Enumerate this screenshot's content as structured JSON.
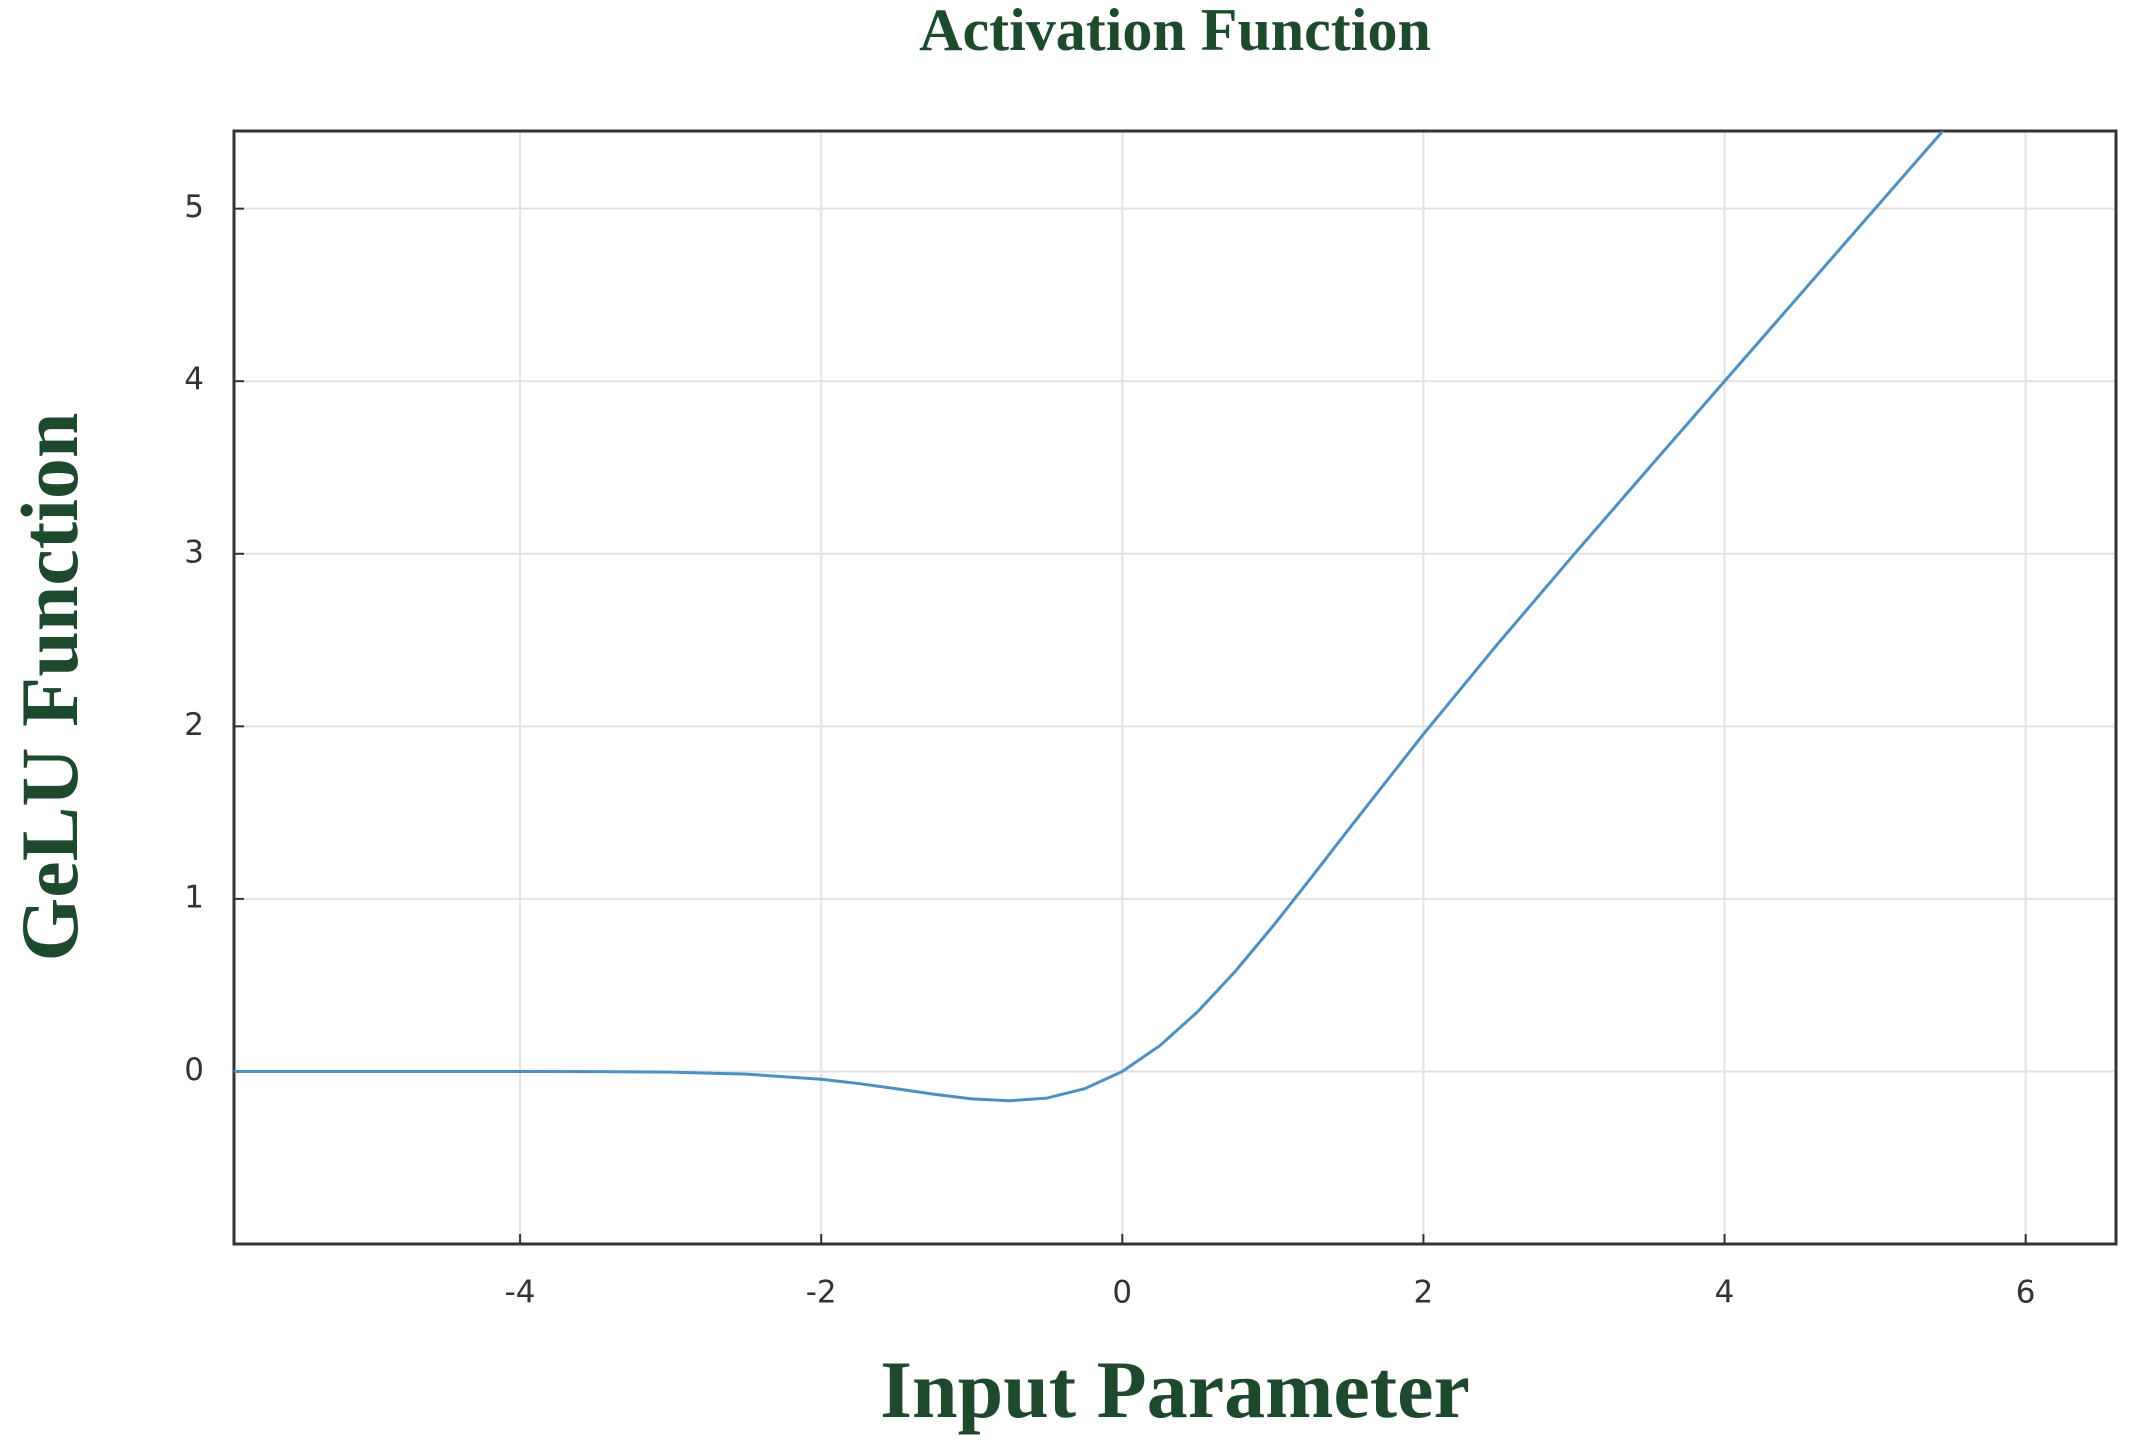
{
  "chart_data": {
    "type": "line",
    "title": "Activation Function",
    "x_label": "Input Parameter",
    "y_label": "GeLU Function",
    "x": [
      -5.9,
      -5,
      -4,
      -3.5,
      -3,
      -2.5,
      -2,
      -1.75,
      -1.5,
      -1.25,
      -1,
      -0.75,
      -0.5,
      -0.25,
      0,
      0.25,
      0.5,
      0.75,
      1,
      1.25,
      1.5,
      2,
      2.5,
      3,
      3.5,
      4,
      4.5,
      5,
      5.45
    ],
    "series": [
      {
        "name": "GeLU",
        "color": "#4d8fc0",
        "values": [
          0,
          0,
          -0.0001,
          -0.0008,
          -0.004,
          -0.0155,
          -0.0455,
          -0.0702,
          -0.1002,
          -0.132,
          -0.1587,
          -0.17,
          -0.1543,
          -0.1003,
          0,
          0.1497,
          0.3457,
          0.58,
          0.8413,
          1.118,
          1.3998,
          1.9545,
          2.4845,
          2.996,
          3.4992,
          3.9999,
          4.5,
          5,
          5.45
        ]
      }
    ],
    "xlim": [
      -5.9,
      6.6
    ],
    "ylim": [
      -1,
      5.45
    ],
    "xticks": [
      -4,
      -2,
      0,
      2,
      4,
      6
    ],
    "yticks": [
      0,
      1,
      2,
      3,
      4,
      5
    ],
    "grid": true
  }
}
